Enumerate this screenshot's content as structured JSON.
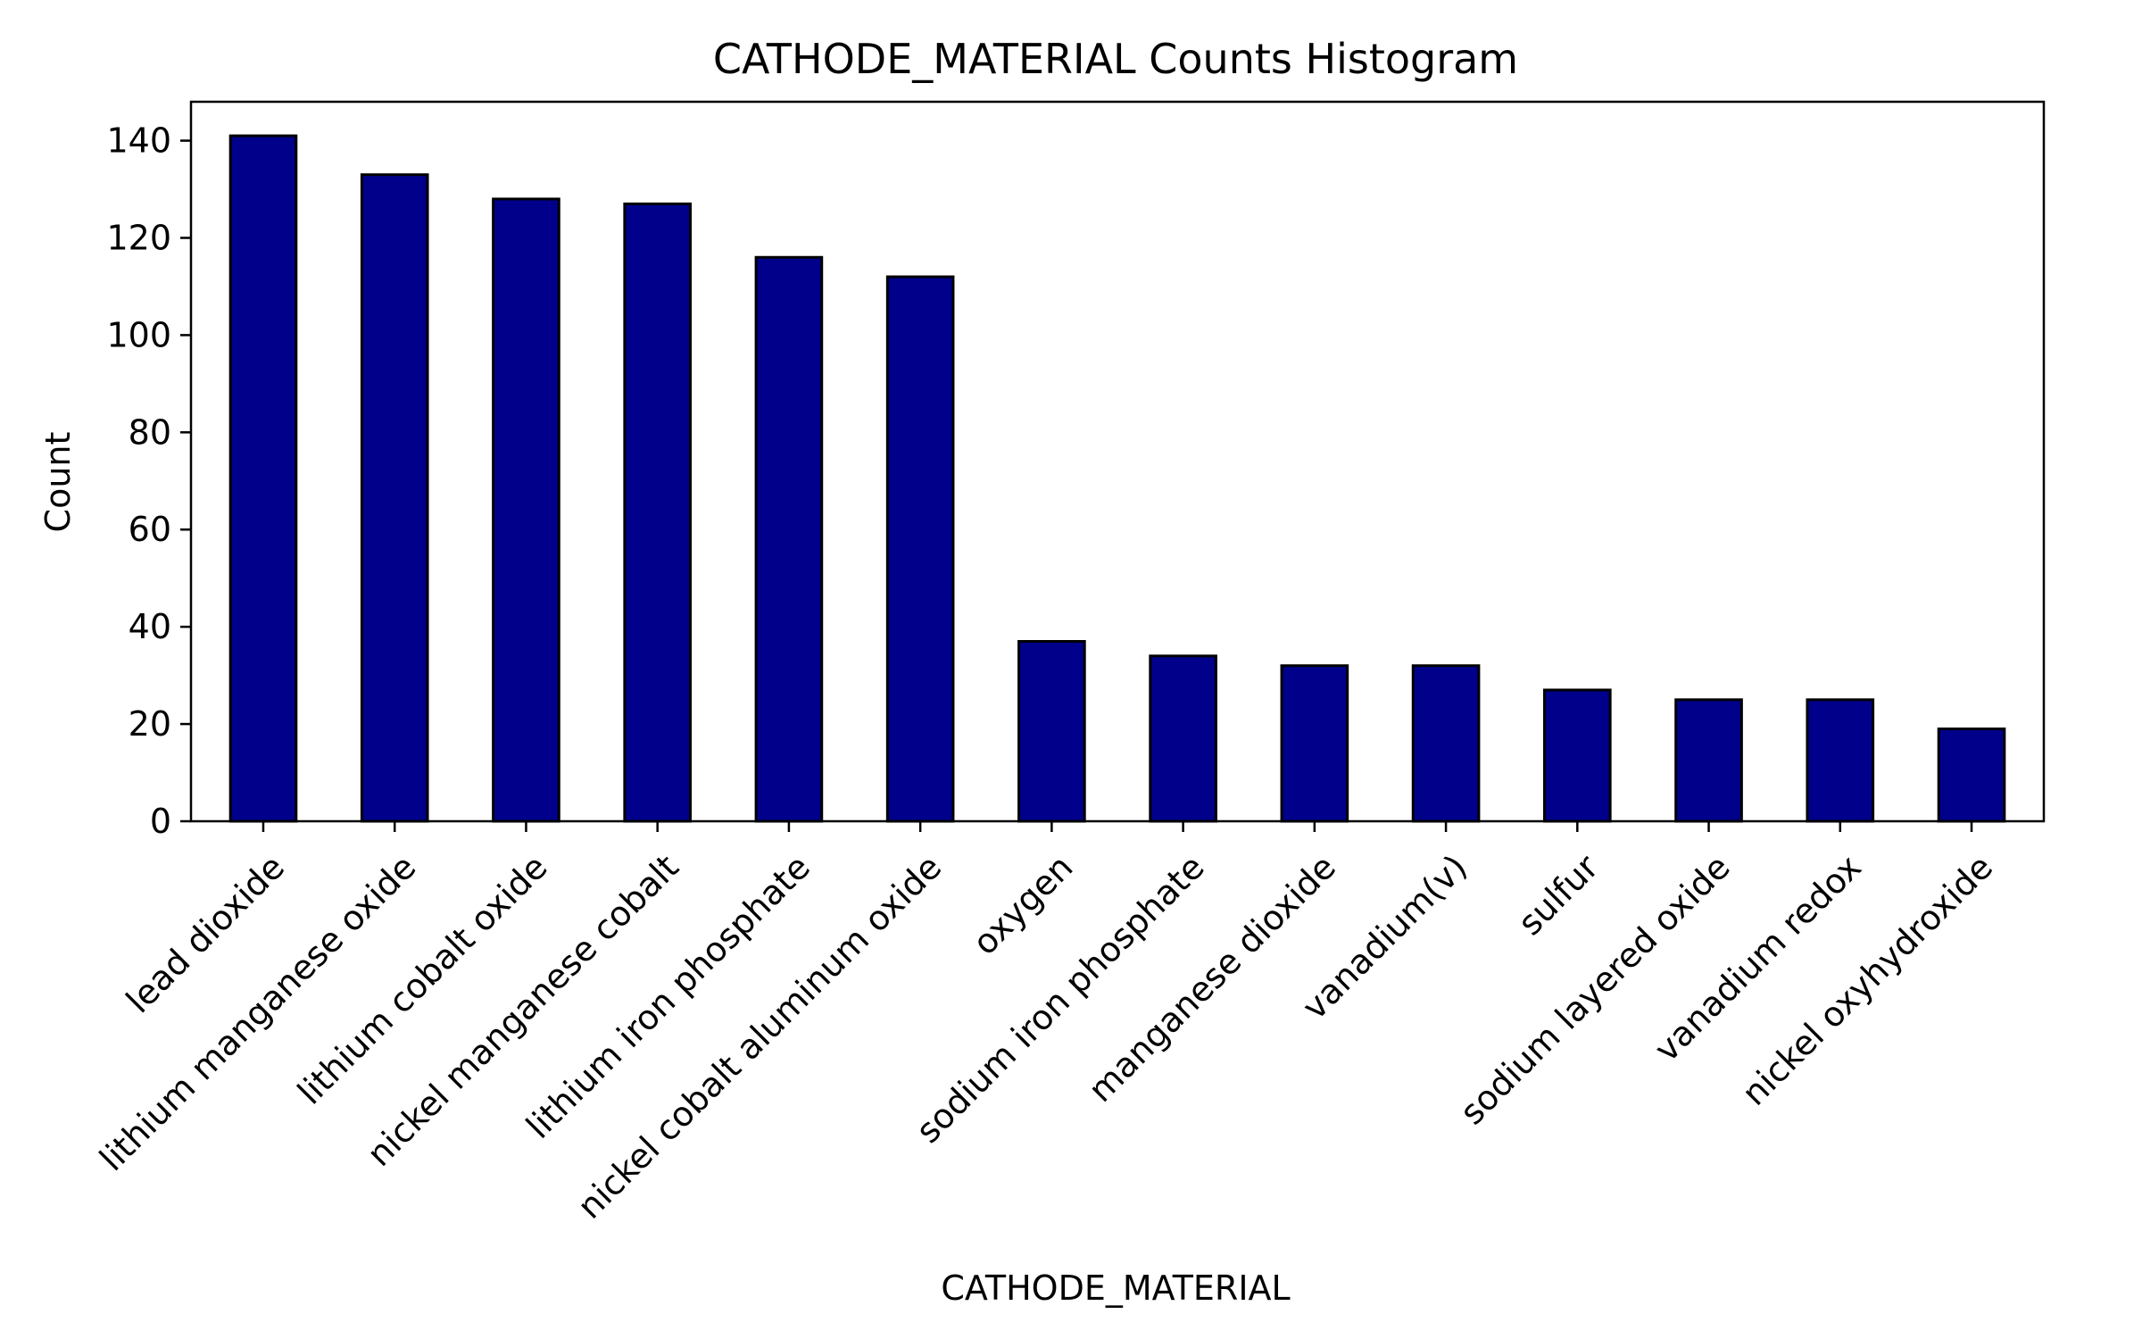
{
  "chart_data": {
    "type": "bar",
    "title": "CATHODE_MATERIAL Counts Histogram",
    "xlabel": "CATHODE_MATERIAL",
    "ylabel": "Count",
    "categories": [
      "lead dioxide",
      "lithium manganese oxide",
      "lithium cobalt oxide",
      "nickel manganese cobalt",
      "lithium iron phosphate",
      "nickel cobalt aluminum oxide",
      "oxygen",
      "sodium iron phosphate",
      "manganese dioxide",
      "vanadium(v)",
      "sulfur",
      "sodium layered oxide",
      "vanadium redox",
      "nickel oxyhydroxide"
    ],
    "values": [
      141,
      133,
      128,
      127,
      116,
      112,
      37,
      34,
      32,
      32,
      27,
      25,
      25,
      19
    ],
    "ylim": [
      0,
      148
    ],
    "yticks": [
      0,
      20,
      40,
      60,
      80,
      100,
      120,
      140
    ],
    "grid": false,
    "legend": false,
    "bar_color": "#00008b",
    "bar_edge_color": "#000000"
  }
}
